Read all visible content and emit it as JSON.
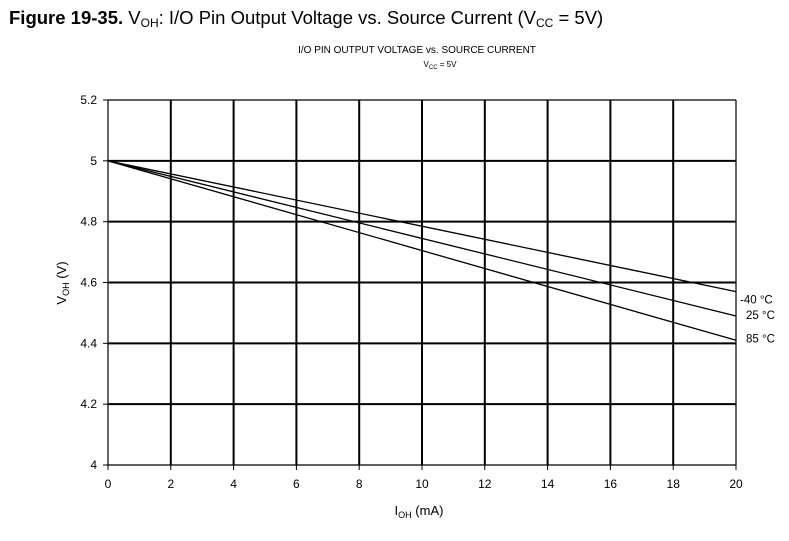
{
  "figure_caption": {
    "number": "Figure 19-35.",
    "v": "V",
    "v_sub": "OH",
    "text": ": I/O Pin Output Voltage vs. Source Current (V",
    "vcc_sub": "CC",
    "tail": " = 5V)"
  },
  "chart_data": {
    "type": "line",
    "title": "I/O PIN OUTPUT VOLTAGE vs. SOURCE CURRENT",
    "subtitle": {
      "v": "V",
      "sub": "CC",
      "rest": " = 5V"
    },
    "xlabel": {
      "main": "I",
      "sub": "OH",
      "rest": " (mA)"
    },
    "ylabel": {
      "main": "V",
      "sub": "OH",
      "rest": " (V)"
    },
    "xlim": [
      0,
      20
    ],
    "ylim": [
      4,
      5.2
    ],
    "xticks": [
      0,
      2,
      4,
      6,
      8,
      10,
      12,
      14,
      16,
      18,
      20
    ],
    "yticks": [
      4,
      4.2,
      4.4,
      4.6,
      4.8,
      5,
      5.2
    ],
    "grid": true,
    "legend": "labels at right end of each line",
    "series": [
      {
        "name": "-40 °C",
        "x": [
          0,
          20
        ],
        "y": [
          5.0,
          4.57
        ]
      },
      {
        "name": "25 °C",
        "x": [
          0,
          20
        ],
        "y": [
          5.0,
          4.49
        ]
      },
      {
        "name": "85 °C",
        "x": [
          0,
          20
        ],
        "y": [
          5.0,
          4.41
        ]
      }
    ]
  }
}
